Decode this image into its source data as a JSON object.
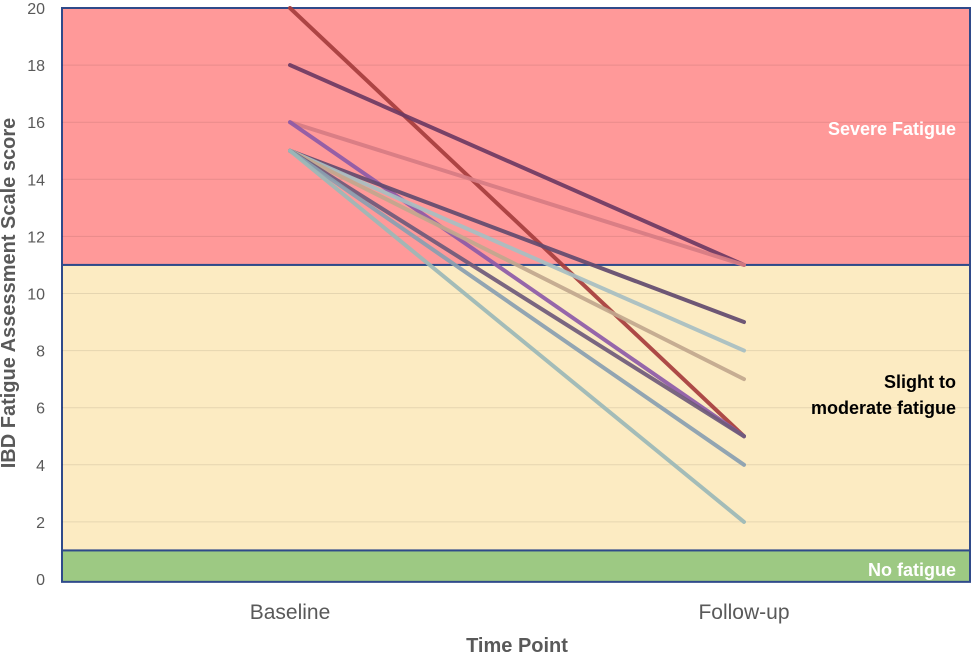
{
  "chart_data": {
    "type": "line",
    "title": "",
    "xlabel": "Time Point",
    "ylabel": "IBD Fatigue Assessment Scale score",
    "categories": [
      "Baseline",
      "Follow-up"
    ],
    "ylim": [
      0,
      20
    ],
    "yticks": [
      0,
      2,
      4,
      6,
      8,
      10,
      12,
      14,
      16,
      18,
      20
    ],
    "grid": true,
    "legend": "none",
    "bands": [
      {
        "label": "Severe Fatigue",
        "from": 11,
        "to": 20,
        "color": "#ff9999",
        "label_color": "#ffffff"
      },
      {
        "label": "Slight to moderate fatigue",
        "label_lines": [
          "Slight to",
          "moderate fatigue"
        ],
        "from": 1,
        "to": 11,
        "color": "#fcebc2",
        "label_color": "#000000"
      },
      {
        "label": "No fatigue",
        "from": -0.1,
        "to": 1,
        "color": "#9dc983",
        "label_color": "#ffffff"
      }
    ],
    "band_border_color": "#2f4a8a",
    "series": [
      {
        "values": [
          20,
          5
        ],
        "color": "#a73d3d"
      },
      {
        "values": [
          18,
          11
        ],
        "color": "#6e3a63"
      },
      {
        "values": [
          16,
          11
        ],
        "color": "#d77c84"
      },
      {
        "values": [
          16,
          5
        ],
        "color": "#8e5ba8"
      },
      {
        "values": [
          15,
          9
        ],
        "color": "#634b6f"
      },
      {
        "values": [
          15,
          8
        ],
        "color": "#a8bfc3"
      },
      {
        "values": [
          15,
          7
        ],
        "color": "#c2a88f"
      },
      {
        "values": [
          15,
          5
        ],
        "color": "#6f5b7b"
      },
      {
        "values": [
          15,
          4
        ],
        "color": "#8aa0b1"
      },
      {
        "values": [
          15,
          2
        ],
        "color": "#9cb9b8"
      }
    ]
  }
}
